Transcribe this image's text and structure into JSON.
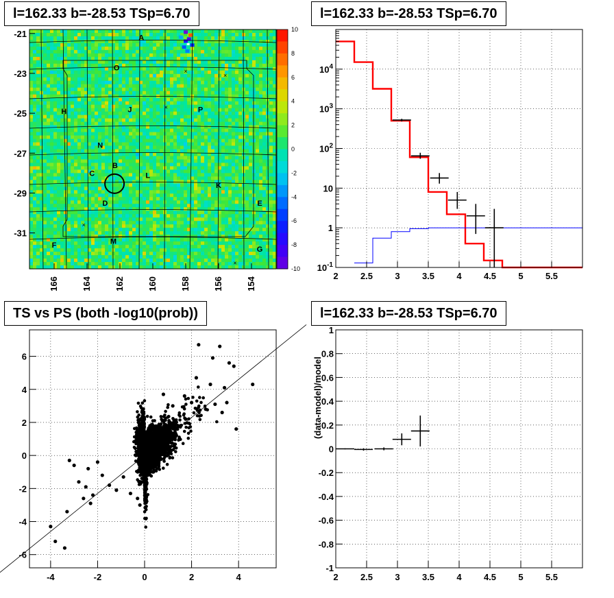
{
  "panels": {
    "tl_title": "l=162.33 b=-28.53 TSp=6.70",
    "tr_title": "l=162.33 b=-28.53 TSp=6.70",
    "bl_title": "TS vs PS (both -log10(prob))",
    "br_title": "l=162.33 b=-28.53 TSp=6.70"
  },
  "chart_data": [
    {
      "name": "significance-map",
      "type": "heatmap",
      "xlabel": "",
      "ylabel": "",
      "xlim": [
        167.5,
        152.5
      ],
      "ylim": [
        -32.8,
        -20.8
      ],
      "x_ticks": [
        "166",
        "164",
        "162",
        "160",
        "158",
        "156",
        "154"
      ],
      "y_ticks": [
        "-21",
        "-23",
        "-25",
        "-27",
        "-29",
        "-31"
      ],
      "colorbar_ticks": [
        "10",
        "8",
        "6",
        "4",
        "2",
        "0",
        "-2",
        "-4",
        "-6",
        "-8",
        "-10"
      ],
      "colorbar_range": [
        -10,
        10
      ],
      "background_value": 0.5,
      "field_labels": [
        {
          "text": "A",
          "l": 160.7,
          "b": -21.2
        },
        {
          "text": "O",
          "l": 162.2,
          "b": -22.7
        },
        {
          "text": "H",
          "l": 165.4,
          "b": -24.9
        },
        {
          "text": "J",
          "l": 161.4,
          "b": -24.8
        },
        {
          "text": "P",
          "l": 157.1,
          "b": -24.8
        },
        {
          "text": "N",
          "l": 163.2,
          "b": -26.6
        },
        {
          "text": "B",
          "l": 162.3,
          "b": -27.6
        },
        {
          "text": "C",
          "l": 163.7,
          "b": -28.0
        },
        {
          "text": "L",
          "l": 160.3,
          "b": -28.1
        },
        {
          "text": "K",
          "l": 156.0,
          "b": -28.6
        },
        {
          "text": "D",
          "l": 162.9,
          "b": -29.5
        },
        {
          "text": "E",
          "l": 153.5,
          "b": -29.5
        },
        {
          "text": "F",
          "l": 166.0,
          "b": -31.6
        },
        {
          "text": "M",
          "l": 162.4,
          "b": -31.4
        },
        {
          "text": "G",
          "l": 153.5,
          "b": -31.8
        }
      ],
      "source_circle": {
        "l": 162.33,
        "b": -28.53
      }
    },
    {
      "name": "spectrum",
      "type": "line",
      "log_y": true,
      "xlim": [
        2,
        6
      ],
      "ylim": [
        0.1,
        100000
      ],
      "x_ticks": [
        "2",
        "2.5",
        "3",
        "3.5",
        "4",
        "4.5",
        "5",
        "5.5"
      ],
      "y_ticks": [
        "10^-1",
        "1",
        "10",
        "10^2",
        "10^3",
        "10^4"
      ],
      "series": [
        {
          "color": "#ff0000",
          "steps": [
            [
              2.0,
              2.3,
              50000
            ],
            [
              2.3,
              2.6,
              15000
            ],
            [
              2.6,
              2.9,
              3200
            ],
            [
              2.9,
              3.2,
              500
            ],
            [
              3.2,
              3.5,
              60
            ],
            [
              3.5,
              3.8,
              8
            ],
            [
              3.8,
              4.1,
              2.2
            ],
            [
              4.1,
              4.4,
              0.4
            ],
            [
              4.4,
              4.7,
              0.15
            ],
            [
              4.7,
              6.0,
              0.1
            ]
          ]
        },
        {
          "color": "#0000ff",
          "steps": [
            [
              2.3,
              2.6,
              0.13
            ],
            [
              2.6,
              2.9,
              0.55
            ],
            [
              2.9,
              3.2,
              0.8
            ],
            [
              3.2,
              3.5,
              0.95
            ],
            [
              3.5,
              6.0,
              1.0
            ]
          ]
        }
      ],
      "points": [
        {
          "x": 3.07,
          "xerr": 0.15,
          "y": 520,
          "ylo": 480,
          "yhi": 560
        },
        {
          "x": 3.37,
          "xerr": 0.15,
          "y": 65,
          "ylo": 55,
          "yhi": 78
        },
        {
          "x": 3.68,
          "xerr": 0.15,
          "y": 18,
          "ylo": 13,
          "yhi": 24
        },
        {
          "x": 3.97,
          "xerr": 0.15,
          "y": 5,
          "ylo": 3,
          "yhi": 8
        },
        {
          "x": 4.27,
          "xerr": 0.15,
          "y": 2,
          "ylo": 0.7,
          "yhi": 4
        },
        {
          "x": 4.57,
          "xerr": 0.15,
          "y": 1,
          "ylo": 0.1,
          "yhi": 3
        }
      ]
    },
    {
      "name": "ts-vs-ps",
      "type": "scatter",
      "xlim": [
        -4.9,
        5.6
      ],
      "ylim": [
        -6.8,
        7.6
      ],
      "x_ticks": [
        "-4",
        "-2",
        "0",
        "2",
        "4"
      ],
      "y_ticks": [
        "-6",
        "-4",
        "-2",
        "0",
        "2",
        "4",
        "6"
      ],
      "fit_line": {
        "slope": 1.15,
        "intercept": 0
      },
      "outliers": [
        [
          -4.0,
          -4.3
        ],
        [
          -3.8,
          -5.2
        ],
        [
          -3.4,
          -5.6
        ],
        [
          -3.3,
          -3.4
        ],
        [
          -3.2,
          -0.3
        ],
        [
          -3.0,
          -0.6
        ],
        [
          -2.8,
          -1.6
        ],
        [
          -2.6,
          -2.6
        ],
        [
          -2.5,
          -1.9
        ],
        [
          -2.4,
          -0.8
        ],
        [
          -2.3,
          -2.9
        ],
        [
          -2.2,
          -2.4
        ],
        [
          -2.0,
          -0.4
        ],
        [
          -1.8,
          -1.2
        ],
        [
          -1.5,
          -1.8
        ],
        [
          -1.2,
          -2.1
        ],
        [
          -0.9,
          -1.3
        ],
        [
          -0.6,
          -2.3
        ],
        [
          -0.3,
          -2.6
        ],
        [
          -0.2,
          -3.0
        ],
        [
          2.3,
          6.7
        ],
        [
          2.9,
          5.9
        ],
        [
          3.2,
          6.6
        ],
        [
          3.6,
          5.6
        ],
        [
          3.8,
          5.4
        ],
        [
          4.6,
          4.3
        ],
        [
          3.9,
          1.6
        ],
        [
          3.4,
          4.1
        ],
        [
          3.0,
          3.1
        ],
        [
          2.6,
          2.8
        ],
        [
          2.8,
          4.3
        ],
        [
          3.3,
          2.6
        ],
        [
          2.2,
          4.7
        ],
        [
          2.0,
          3.2
        ],
        [
          1.7,
          3.6
        ],
        [
          1.2,
          3.0
        ],
        [
          0.8,
          3.7
        ],
        [
          3.5,
          3.2
        ]
      ]
    },
    {
      "name": "residuals",
      "type": "scatter",
      "xlim": [
        2,
        6
      ],
      "ylim": [
        -1,
        1
      ],
      "ylabel": "(data-model)/model",
      "x_ticks": [
        "2",
        "2.5",
        "3",
        "3.5",
        "4",
        "4.5",
        "5",
        "5.5"
      ],
      "y_ticks": [
        "-1",
        "-0.8",
        "-0.6",
        "-0.4",
        "-0.2",
        "0",
        "0.2",
        "0.4",
        "0.6",
        "0.8",
        "1"
      ],
      "points": [
        {
          "x": 2.15,
          "xerr": 0.15,
          "y": 0.0,
          "yerr": 0.004
        },
        {
          "x": 2.45,
          "xerr": 0.15,
          "y": -0.005,
          "yerr": 0.01
        },
        {
          "x": 2.78,
          "xerr": 0.15,
          "y": 0.0,
          "yerr": 0.012
        },
        {
          "x": 3.07,
          "xerr": 0.15,
          "y": 0.08,
          "yerr": 0.05
        },
        {
          "x": 3.37,
          "xerr": 0.15,
          "y": 0.15,
          "yerr": 0.13
        }
      ]
    }
  ]
}
